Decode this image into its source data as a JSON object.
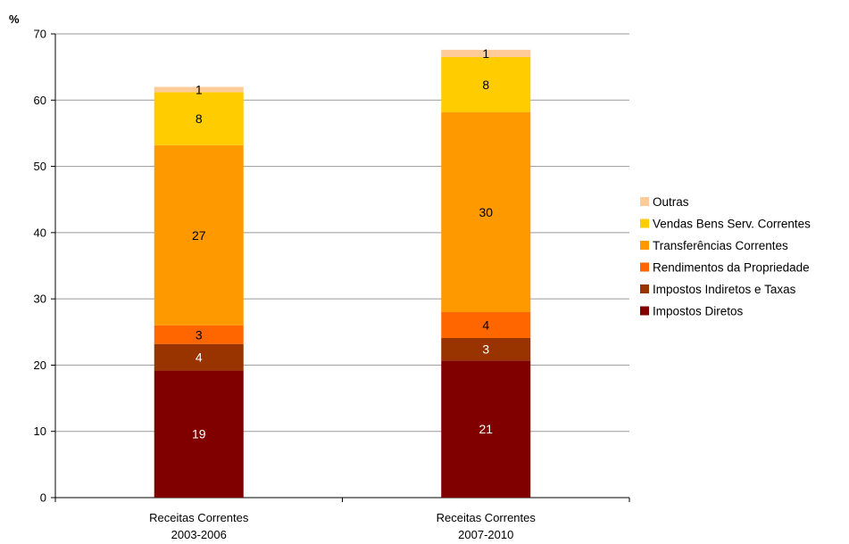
{
  "chart_data": {
    "type": "bar",
    "stacked": true,
    "title": "",
    "ylabel": "%",
    "xlabel": "",
    "ylim": [
      0,
      70
    ],
    "yticks": [
      0,
      10,
      20,
      30,
      40,
      50,
      60,
      70
    ],
    "grid": true,
    "legend_position": "right",
    "categories": [
      [
        "Receitas Correntes",
        "2003-2006"
      ],
      [
        "Receitas Correntes",
        "2007-2010"
      ]
    ],
    "series": [
      {
        "name": "Impostos Diretos",
        "color": "#800000",
        "label_color": "#ffffff",
        "values": [
          19.2,
          20.7
        ],
        "labels": [
          "19",
          "21"
        ]
      },
      {
        "name": "Impostos Indiretos e Taxas",
        "color": "#993300",
        "label_color": "#ffffff",
        "values": [
          4.0,
          3.4
        ],
        "labels": [
          "4",
          "3"
        ]
      },
      {
        "name": "Rendimentos da Propriedade",
        "color": "#ff6600",
        "label_color": "#000000",
        "values": [
          2.8,
          3.9
        ],
        "labels": [
          "3",
          "4"
        ]
      },
      {
        "name": "Transferências Correntes",
        "color": "#ff9900",
        "label_color": "#000000",
        "values": [
          27.2,
          30.2
        ],
        "labels": [
          "27",
          "30"
        ]
      },
      {
        "name": "Vendas Bens Serv. Correntes",
        "color": "#ffcc00",
        "label_color": "#000000",
        "values": [
          8.0,
          8.3
        ],
        "labels": [
          "8",
          "8"
        ]
      },
      {
        "name": "Outras",
        "color": "#ffcc99",
        "label_color": "#000000",
        "values": [
          0.8,
          1.1
        ],
        "labels": [
          "1",
          "1"
        ]
      }
    ]
  }
}
